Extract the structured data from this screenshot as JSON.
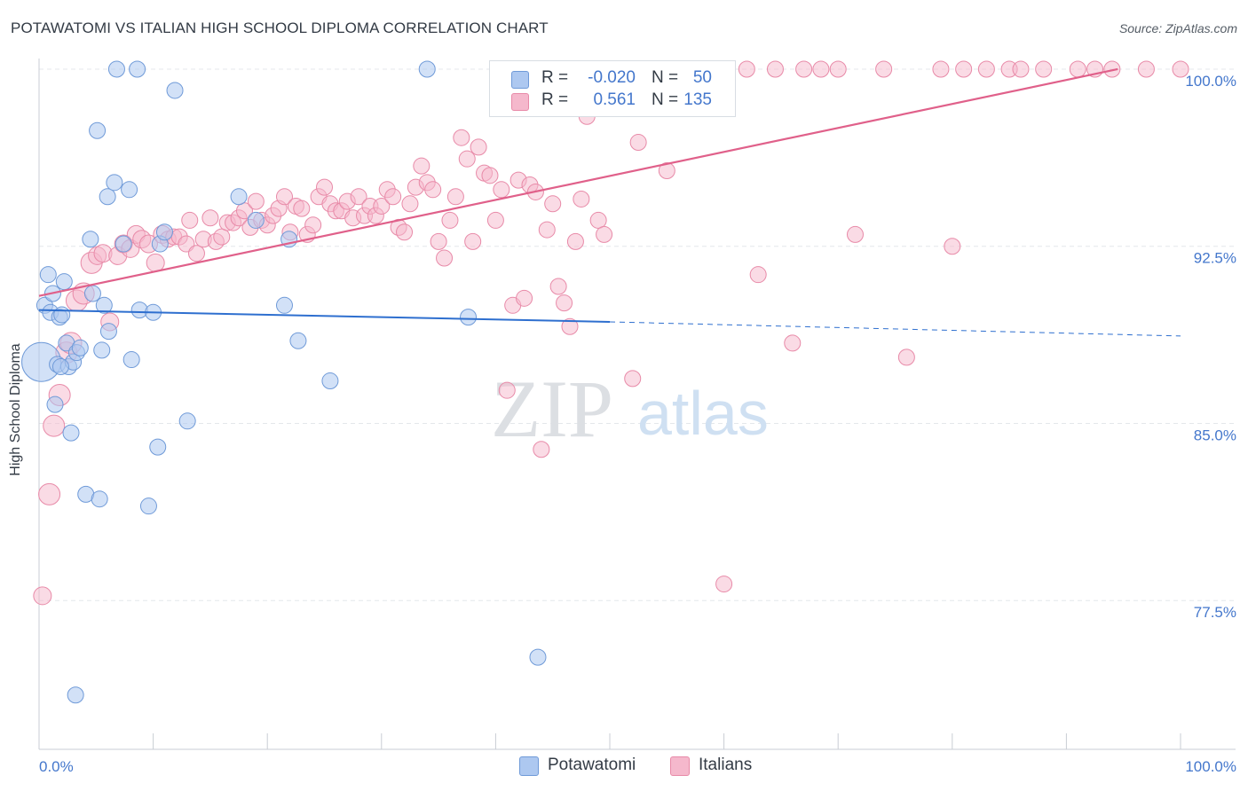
{
  "title": "POTAWATOMI VS ITALIAN HIGH SCHOOL DIPLOMA CORRELATION CHART",
  "source": "Source: ZipAtlas.com",
  "watermark": {
    "zip": "ZIP",
    "atlas": "atlas"
  },
  "legend": {
    "rows": [
      {
        "r_label": "R =",
        "r_value": "-0.020",
        "n_label": "N =",
        "n_value": "50",
        "color": "#adc8f0"
      },
      {
        "r_label": "R =",
        "r_value": "0.561",
        "n_label": "N =",
        "n_value": "135",
        "color": "#f5b8cc"
      }
    ]
  },
  "bottom_legend": {
    "series1": "Potawatomi",
    "series2": "Italians"
  },
  "colors": {
    "blue_fill": "#adc8f0",
    "blue_stroke": "#6f9ad8",
    "blue_line": "#2e6fcf",
    "pink_fill": "#f5b8cc",
    "pink_stroke": "#e88aa8",
    "pink_line": "#e0608a",
    "axis_text": "#4477cc",
    "grid": "#e4e7eb"
  },
  "chart_data": {
    "type": "scatter",
    "title": "POTAWATOMI VS ITALIAN HIGH SCHOOL DIPLOMA CORRELATION CHART",
    "xlabel": "",
    "ylabel": "High School Diploma",
    "xlim": [
      0,
      100
    ],
    "ylim": [
      71.2,
      100.6
    ],
    "x_tick_labels": [
      "0.0%",
      "100.0%"
    ],
    "y_ticks": [
      {
        "value": 77.5,
        "label": "77.5%"
      },
      {
        "value": 85.0,
        "label": "85.0%"
      },
      {
        "value": 92.5,
        "label": "92.5%"
      },
      {
        "value": 100.0,
        "label": "100.0%"
      }
    ],
    "series": [
      {
        "name": "Potawatomi",
        "r": -0.02,
        "n": 50,
        "trend": {
          "x0": 0,
          "y0": 89.8,
          "x1": 50,
          "y1": 89.3,
          "dash_x1": 100,
          "dash_y1": 88.7
        },
        "points": [
          [
            0.2,
            87.6,
            22
          ],
          [
            0.5,
            90.0,
            9
          ],
          [
            0.8,
            91.3,
            9
          ],
          [
            1.0,
            89.7,
            9
          ],
          [
            1.2,
            90.5,
            9
          ],
          [
            1.4,
            85.8,
            9
          ],
          [
            1.6,
            87.5,
            9
          ],
          [
            1.8,
            89.5,
            9
          ],
          [
            2.0,
            89.6,
            9
          ],
          [
            2.2,
            91.0,
            9
          ],
          [
            2.4,
            88.4,
            9
          ],
          [
            2.6,
            87.4,
            9
          ],
          [
            2.8,
            84.6,
            9
          ],
          [
            3.0,
            87.6,
            9
          ],
          [
            3.3,
            88.0,
            9
          ],
          [
            3.2,
            73.5,
            9
          ],
          [
            4.1,
            82.0,
            9
          ],
          [
            4.5,
            92.8,
            9
          ],
          [
            4.7,
            90.5,
            9
          ],
          [
            5.1,
            97.4,
            9
          ],
          [
            5.3,
            81.8,
            9
          ],
          [
            5.5,
            88.1,
            9
          ],
          [
            5.7,
            90.0,
            9
          ],
          [
            6.0,
            94.6,
            9
          ],
          [
            6.1,
            88.9,
            9
          ],
          [
            6.6,
            95.2,
            9
          ],
          [
            6.8,
            100.0,
            9
          ],
          [
            7.4,
            92.6,
            9
          ],
          [
            7.9,
            94.9,
            9
          ],
          [
            8.1,
            87.7,
            9
          ],
          [
            8.6,
            100.0,
            9
          ],
          [
            8.8,
            89.8,
            9
          ],
          [
            9.6,
            81.5,
            9
          ],
          [
            10.0,
            89.7,
            9
          ],
          [
            10.4,
            84.0,
            9
          ],
          [
            10.6,
            92.6,
            9
          ],
          [
            11.0,
            93.1,
            9
          ],
          [
            11.9,
            99.1,
            9
          ],
          [
            13.0,
            85.1,
            9
          ],
          [
            17.5,
            94.6,
            9
          ],
          [
            19.0,
            93.6,
            9
          ],
          [
            21.5,
            90.0,
            9
          ],
          [
            21.9,
            92.8,
            9
          ],
          [
            22.7,
            88.5,
            9
          ],
          [
            25.5,
            86.8,
            9
          ],
          [
            34.0,
            100.0,
            9
          ],
          [
            37.6,
            89.5,
            9
          ],
          [
            43.7,
            75.1,
            9
          ],
          [
            3.6,
            88.2,
            9
          ],
          [
            1.9,
            87.4,
            9
          ]
        ]
      },
      {
        "name": "Italians",
        "r": 0.561,
        "n": 135,
        "trend": {
          "x0": 0,
          "y0": 90.4,
          "x1": 94.5,
          "y1": 100.0
        },
        "points": [
          [
            0.3,
            77.7,
            10
          ],
          [
            0.9,
            82.0,
            12
          ],
          [
            1.3,
            84.9,
            12
          ],
          [
            1.8,
            86.2,
            12
          ],
          [
            2.4,
            88.0,
            12
          ],
          [
            2.8,
            88.4,
            12
          ],
          [
            3.3,
            90.2,
            12
          ],
          [
            3.9,
            90.5,
            12
          ],
          [
            4.6,
            91.8,
            12
          ],
          [
            5.1,
            92.1,
            10
          ],
          [
            5.6,
            92.2,
            10
          ],
          [
            6.2,
            89.3,
            10
          ],
          [
            6.9,
            92.1,
            10
          ],
          [
            7.4,
            92.6,
            10
          ],
          [
            8.0,
            92.4,
            10
          ],
          [
            8.5,
            93.0,
            10
          ],
          [
            9.0,
            92.8,
            10
          ],
          [
            9.6,
            92.6,
            10
          ],
          [
            10.2,
            91.8,
            10
          ],
          [
            10.8,
            93.0,
            10
          ],
          [
            11.3,
            92.8,
            9
          ],
          [
            11.8,
            92.9,
            9
          ],
          [
            12.3,
            92.9,
            9
          ],
          [
            12.9,
            92.6,
            9
          ],
          [
            13.2,
            93.6,
            9
          ],
          [
            13.8,
            92.2,
            9
          ],
          [
            14.4,
            92.8,
            9
          ],
          [
            15.0,
            93.7,
            9
          ],
          [
            15.5,
            92.7,
            9
          ],
          [
            16.0,
            92.9,
            9
          ],
          [
            16.5,
            93.5,
            9
          ],
          [
            17.0,
            93.5,
            9
          ],
          [
            17.5,
            93.7,
            9
          ],
          [
            18.0,
            94.0,
            9
          ],
          [
            18.5,
            93.3,
            9
          ],
          [
            19.0,
            94.4,
            9
          ],
          [
            19.5,
            93.6,
            9
          ],
          [
            20.0,
            93.4,
            9
          ],
          [
            20.5,
            93.8,
            9
          ],
          [
            21.0,
            94.1,
            9
          ],
          [
            21.5,
            94.6,
            9
          ],
          [
            22.0,
            93.1,
            9
          ],
          [
            22.5,
            94.2,
            9
          ],
          [
            23.0,
            94.1,
            9
          ],
          [
            23.5,
            93.0,
            9
          ],
          [
            24.0,
            93.4,
            9
          ],
          [
            24.5,
            94.6,
            9
          ],
          [
            25.0,
            95.0,
            9
          ],
          [
            25.5,
            94.3,
            9
          ],
          [
            26.0,
            94.0,
            9
          ],
          [
            26.5,
            94.0,
            9
          ],
          [
            27.0,
            94.4,
            9
          ],
          [
            27.5,
            93.7,
            9
          ],
          [
            28.0,
            94.6,
            9
          ],
          [
            28.5,
            93.8,
            9
          ],
          [
            29.0,
            94.2,
            9
          ],
          [
            29.5,
            93.8,
            9
          ],
          [
            30.0,
            94.2,
            9
          ],
          [
            30.5,
            94.9,
            9
          ],
          [
            31.0,
            94.6,
            9
          ],
          [
            31.5,
            93.3,
            9
          ],
          [
            32.0,
            93.1,
            9
          ],
          [
            32.5,
            94.3,
            9
          ],
          [
            33.0,
            95.0,
            9
          ],
          [
            33.5,
            95.9,
            9
          ],
          [
            34.0,
            95.2,
            9
          ],
          [
            34.5,
            94.9,
            9
          ],
          [
            35.0,
            92.7,
            9
          ],
          [
            35.5,
            92.0,
            9
          ],
          [
            36.0,
            93.6,
            9
          ],
          [
            36.5,
            94.6,
            9
          ],
          [
            37.0,
            97.1,
            9
          ],
          [
            37.5,
            96.2,
            9
          ],
          [
            38.0,
            92.7,
            9
          ],
          [
            38.5,
            96.7,
            9
          ],
          [
            39.0,
            95.6,
            9
          ],
          [
            39.5,
            95.5,
            9
          ],
          [
            40.0,
            93.6,
            9
          ],
          [
            40.5,
            94.9,
            9
          ],
          [
            41.0,
            86.4,
            9
          ],
          [
            41.5,
            90.0,
            9
          ],
          [
            42.0,
            95.3,
            9
          ],
          [
            42.5,
            90.3,
            9
          ],
          [
            43.0,
            95.1,
            9
          ],
          [
            43.5,
            94.8,
            9
          ],
          [
            44.0,
            83.9,
            9
          ],
          [
            44.5,
            93.2,
            9
          ],
          [
            45.0,
            94.3,
            9
          ],
          [
            45.5,
            90.8,
            9
          ],
          [
            46.0,
            90.1,
            9
          ],
          [
            46.5,
            89.1,
            9
          ],
          [
            47.0,
            92.7,
            9
          ],
          [
            47.5,
            94.5,
            9
          ],
          [
            48.0,
            98.0,
            9
          ],
          [
            48.5,
            100.0,
            9
          ],
          [
            49.0,
            93.6,
            9
          ],
          [
            49.5,
            93.0,
            9
          ],
          [
            50.0,
            100.0,
            9
          ],
          [
            52.0,
            86.9,
            9
          ],
          [
            52.5,
            96.9,
            9
          ],
          [
            53.5,
            100.0,
            9
          ],
          [
            55.0,
            95.7,
            9
          ],
          [
            56.0,
            100.0,
            9
          ],
          [
            57.0,
            100.0,
            9
          ],
          [
            58.5,
            100.0,
            9
          ],
          [
            60.0,
            78.2,
            9
          ],
          [
            62.0,
            100.0,
            9
          ],
          [
            63.0,
            91.3,
            9
          ],
          [
            64.5,
            100.0,
            9
          ],
          [
            67.0,
            100.0,
            9
          ],
          [
            68.5,
            100.0,
            9
          ],
          [
            70.0,
            100.0,
            9
          ],
          [
            71.5,
            93.0,
            9
          ],
          [
            74.0,
            100.0,
            9
          ],
          [
            76.0,
            87.8,
            9
          ],
          [
            79.0,
            100.0,
            9
          ],
          [
            80.0,
            92.5,
            9
          ],
          [
            81.0,
            100.0,
            9
          ],
          [
            83.0,
            100.0,
            9
          ],
          [
            85.0,
            100.0,
            9
          ],
          [
            86.0,
            100.0,
            9
          ],
          [
            88.0,
            100.0,
            9
          ],
          [
            91.0,
            100.0,
            9
          ],
          [
            92.5,
            100.0,
            9
          ],
          [
            94.0,
            100.0,
            9
          ],
          [
            66.0,
            88.4,
            9
          ],
          [
            58.0,
            100.0,
            9
          ],
          [
            54.0,
            100.0,
            9
          ],
          [
            97.0,
            100.0,
            9
          ],
          [
            100.0,
            100.0,
            9
          ]
        ]
      }
    ]
  }
}
